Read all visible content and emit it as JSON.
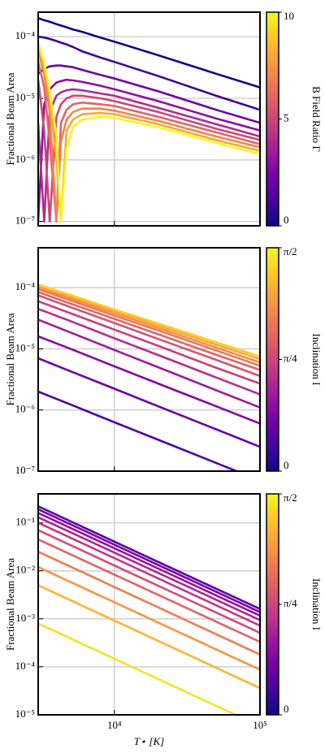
{
  "chart_data": [
    {
      "type": "line",
      "ylabel": "Fractional Beam Area",
      "xscale": "log",
      "yscale": "log",
      "grid": true,
      "xlim": [
        3000,
        100000
      ],
      "xticks": [
        10000,
        100000
      ],
      "ylim": [
        8.5e-08,
        0.00025
      ],
      "yticks": [
        {
          "value": 1e-07,
          "label": "10⁻⁷"
        },
        {
          "value": 1e-06,
          "label": "10⁻⁶"
        },
        {
          "value": 1e-05,
          "label": "10⁻⁵"
        },
        {
          "value": 0.0001,
          "label": "10⁻⁴"
        }
      ],
      "x": [
        3000,
        3300,
        3600,
        4000,
        4300,
        4700,
        5200,
        6000,
        8000,
        10000,
        20000,
        50000,
        100000
      ],
      "series": [
        {
          "color": "#0d0887",
          "values": [
            0.0002,
            0.000185,
            0.000175,
            0.00016,
            0.000152,
            0.000142,
            0.000131,
            0.00012,
            9.7e-05,
            8.3e-05,
            5e-05,
            2.5e-05,
            1.5e-05
          ]
        },
        {
          "color": "#3e049c",
          "values": [
            0.0001,
            9.7e-05,
            9.2e-05,
            8.5e-05,
            8e-05,
            7.5e-05,
            6.8e-05,
            5.8e-05,
            4.6e-05,
            3.9e-05,
            2.3e-05,
            1.1e-05,
            6.5e-06
          ]
        },
        {
          "color": "#6a00a8",
          "values": [
            2.5e-05,
            3e-05,
            3.3e-05,
            3.4e-05,
            3.4e-05,
            3.3e-05,
            3.2e-05,
            2.9e-05,
            2.4e-05,
            2.1e-05,
            1.3e-05,
            6.5e-06,
            4e-06
          ]
        },
        {
          "color": "#8f0da4",
          "values": [
            1e-07,
            8e-06,
            1.4e-05,
            1.8e-05,
            1.9e-05,
            2e-05,
            1.95e-05,
            1.85e-05,
            1.6e-05,
            1.4e-05,
            9e-06,
            4.7e-06,
            3e-06
          ]
        },
        {
          "color": "#b12a90",
          "values": [
            4e-06,
            1e-07,
            6e-06,
            1.1e-05,
            1.25e-05,
            1.35e-05,
            1.4e-05,
            1.35e-05,
            1.2e-05,
            1.1e-05,
            7e-06,
            3.8e-06,
            2.4e-06
          ]
        },
        {
          "color": "#cc4778",
          "values": [
            2e-05,
            3e-06,
            1e-07,
            5e-06,
            8e-06,
            1e-05,
            1.1e-05,
            1.1e-05,
            1e-05,
            9e-06,
            6e-06,
            3.2e-06,
            2.1e-06
          ]
        },
        {
          "color": "#e16462",
          "values": [
            4e-05,
            1.5e-05,
            2e-06,
            1e-07,
            4e-06,
            6.5e-06,
            8e-06,
            8.5e-06,
            8e-06,
            7.5e-06,
            5e-06,
            2.8e-06,
            1.8e-06
          ]
        },
        {
          "color": "#f2844b",
          "values": [
            6e-05,
            2.5e-05,
            6e-06,
            1e-07,
            2e-06,
            4.5e-06,
            6e-06,
            6.8e-06,
            6.8e-06,
            6.3e-06,
            4.3e-06,
            2.4e-06,
            1.6e-06
          ]
        },
        {
          "color": "#fca636",
          "values": [
            7e-05,
            3.2e-05,
            1e-05,
            1e-06,
            1e-07,
            3e-06,
            4.5e-06,
            5.5e-06,
            5.8e-06,
            5.5e-06,
            3.8e-06,
            2.1e-06,
            1.4e-06
          ]
        },
        {
          "color": "#f0f921",
          "values": [
            8e-05,
            3.8e-05,
            1.3e-05,
            2.5e-06,
            1e-07,
            1.5e-06,
            3.5e-06,
            4.5e-06,
            5e-06,
            4.8e-06,
            3.4e-06,
            1.9e-06,
            1.25e-06
          ]
        }
      ],
      "colorbar": {
        "label": "B Field Ratio Γ",
        "lim": [
          0,
          10
        ],
        "ticks": [
          0,
          5,
          10
        ],
        "colors": [
          "#0d0887",
          "#46039f",
          "#7201a8",
          "#9c179e",
          "#bd3786",
          "#d8576b",
          "#ed7953",
          "#fb9f3a",
          "#fdca26",
          "#f0f921"
        ]
      }
    },
    {
      "type": "line",
      "ylabel": "Fractional Beam Area",
      "xscale": "log",
      "yscale": "log",
      "grid": true,
      "xlim": [
        3000,
        100000
      ],
      "xticks": [
        10000,
        100000
      ],
      "ylim": [
        1e-07,
        0.00045
      ],
      "yticks": [
        {
          "value": 1e-07,
          "label": "10⁻⁷"
        },
        {
          "value": 1e-06,
          "label": "10⁻⁶"
        },
        {
          "value": 1e-05,
          "label": "10⁻⁵"
        },
        {
          "value": 0.0001,
          "label": "10⁻⁴"
        }
      ],
      "x": [
        3000,
        5000,
        10000,
        20000,
        50000,
        100000
      ],
      "series": [
        {
          "color": "#4c02a1",
          "values": [
            2e-06,
            1.23e-06,
            6.3e-07,
            3.26e-07,
            1.36e-07,
            7e-08
          ]
        },
        {
          "color": "#6a00a8",
          "values": [
            7e-06,
            4.3e-06,
            2.23e-06,
            1.15e-06,
            4.83e-07,
            2.5e-07
          ]
        },
        {
          "color": "#8606a6",
          "values": [
            1.6e-05,
            1e-05,
            5.18e-06,
            2.7e-06,
            1.15e-06,
            6e-07
          ]
        },
        {
          "color": "#a01a9c",
          "values": [
            3e-05,
            1.85e-05,
            9.6e-06,
            5e-06,
            2.1e-06,
            1.1e-06
          ]
        },
        {
          "color": "#b52f8c",
          "values": [
            4.5e-05,
            2.84e-05,
            1.49e-05,
            7.9e-06,
            3.4e-06,
            1.8e-06
          ]
        },
        {
          "color": "#c6417d",
          "values": [
            6e-05,
            3.82e-05,
            2.06e-05,
            1.12e-05,
            4.9e-06,
            2.7e-06
          ]
        },
        {
          "color": "#d5546e",
          "values": [
            7.5e-05,
            4.8e-05,
            2.65e-05,
            1.45e-05,
            6.6e-06,
            3.6e-06
          ]
        },
        {
          "color": "#e26561",
          "values": [
            8.5e-05,
            5.5e-05,
            3.1e-05,
            1.73e-05,
            8e-06,
            4.5e-06
          ]
        },
        {
          "color": "#ed7953",
          "values": [
            9.5e-05,
            6.2e-05,
            3.5e-05,
            2e-05,
            9.4e-06,
            5.3e-06
          ]
        },
        {
          "color": "#f68f44",
          "values": [
            0.000102,
            6.7e-05,
            3.85e-05,
            2.2e-05,
            1.05e-05,
            6e-06
          ]
        },
        {
          "color": "#fca636",
          "values": [
            0.000108,
            7.2e-05,
            4.2e-05,
            2.4e-05,
            1.17e-05,
            6.8e-06
          ]
        },
        {
          "color": "#fcce25",
          "values": [
            0.000112,
            7.6e-05,
            4.4e-05,
            2.6e-05,
            1.28e-05,
            7.5e-06
          ]
        }
      ],
      "colorbar": {
        "label": "Inclination I",
        "lim": [
          0,
          1.5708
        ],
        "ticks": [
          0,
          {
            "value": 0.7854,
            "label": "π/4"
          },
          {
            "value": 1.5708,
            "label": "π/2"
          }
        ],
        "colors": [
          "#0d0887",
          "#46039f",
          "#7201a8",
          "#9c179e",
          "#bd3786",
          "#d8576b",
          "#ed7953",
          "#fb9f3a",
          "#fdca26",
          "#f0f921"
        ]
      }
    },
    {
      "type": "line",
      "ylabel": "Fractional Beam Area",
      "xlabel": "T⋆ [K]",
      "xscale": "log",
      "yscale": "log",
      "grid": true,
      "xlim": [
        3000,
        100000
      ],
      "xticks": [
        {
          "value": 10000,
          "label": "10⁴"
        },
        {
          "value": 100000,
          "label": "10⁵"
        }
      ],
      "ylim": [
        1e-05,
        0.4
      ],
      "yticks": [
        {
          "value": 1e-05,
          "label": "10⁻⁵"
        },
        {
          "value": 0.0001,
          "label": "10⁻⁴"
        },
        {
          "value": 0.001,
          "label": "10⁻³"
        },
        {
          "value": 0.01,
          "label": "10⁻²"
        },
        {
          "value": 0.1,
          "label": "10⁻¹"
        }
      ],
      "x": [
        3000,
        100000
      ],
      "series": [
        {
          "color": "#5c01a6",
          "values": [
            0.22,
            0.0016
          ]
        },
        {
          "color": "#7a02a8",
          "values": [
            0.19,
            0.00138
          ]
        },
        {
          "color": "#9511a1",
          "values": [
            0.16,
            0.00116
          ]
        },
        {
          "color": "#ac2694",
          "values": [
            0.13,
            0.00094
          ]
        },
        {
          "color": "#c03a83",
          "values": [
            0.1,
            0.00072
          ]
        },
        {
          "color": "#d14e72",
          "values": [
            0.07,
            0.00051
          ]
        },
        {
          "color": "#e16462",
          "values": [
            0.045,
            0.00033
          ]
        },
        {
          "color": "#ee7b51",
          "values": [
            0.025,
            0.00018
          ]
        },
        {
          "color": "#f89540",
          "values": [
            0.012,
            8.7e-05
          ]
        },
        {
          "color": "#fdb42f",
          "values": [
            0.005,
            3.6e-05
          ]
        },
        {
          "color": "#f4e224",
          "values": [
            0.0008,
            5.8e-06
          ]
        }
      ],
      "colorbar": {
        "label": "Inclination I",
        "lim": [
          0,
          1.5708
        ],
        "ticks": [
          0,
          {
            "value": 0.7854,
            "label": "π/4"
          },
          {
            "value": 1.5708,
            "label": "π/2"
          }
        ],
        "colors": [
          "#0d0887",
          "#46039f",
          "#7201a8",
          "#9c179e",
          "#bd3786",
          "#d8576b",
          "#ed7953",
          "#fb9f3a",
          "#fdca26",
          "#f0f921"
        ]
      }
    }
  ]
}
